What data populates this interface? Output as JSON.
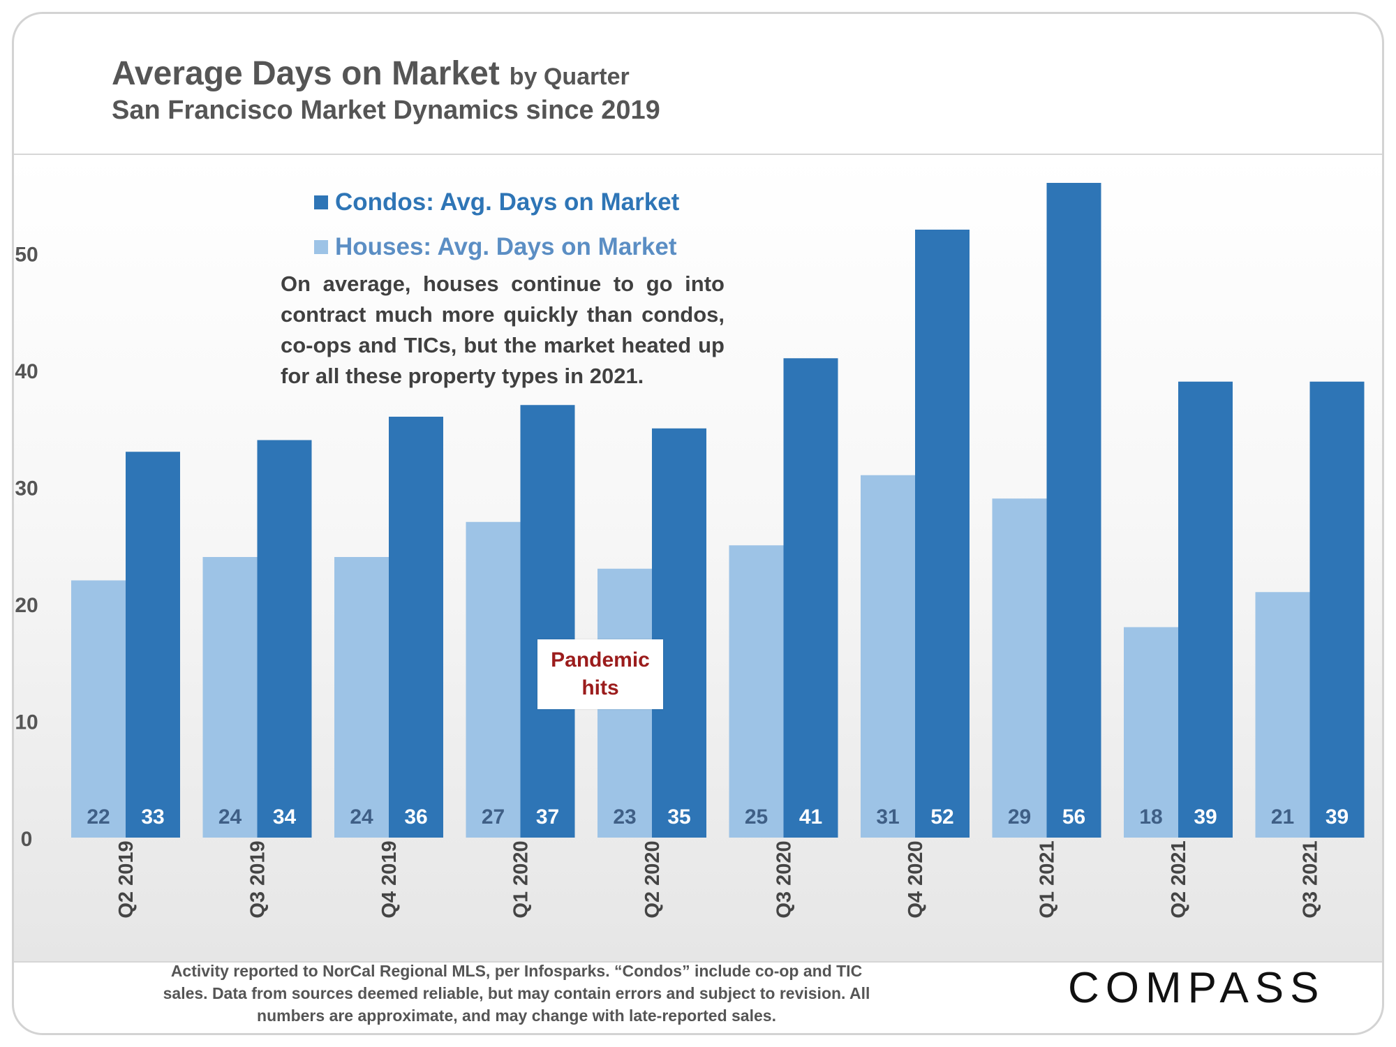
{
  "header": {
    "title": "Average Days on Market",
    "title_suffix": "by Quarter",
    "subtitle": "San Francisco Market Dynamics since 2019"
  },
  "chart_data": {
    "type": "bar",
    "categories": [
      "Q2 2019",
      "Q3 2019",
      "Q4 2019",
      "Q1 2020",
      "Q2 2020",
      "Q3 2020",
      "Q4 2020",
      "Q1 2021",
      "Q2 2021",
      "Q3 2021"
    ],
    "series": [
      {
        "name": "Houses: Avg. Days on Market",
        "values": [
          22,
          24,
          24,
          27,
          23,
          25,
          31,
          29,
          18,
          21
        ],
        "color": "#9dc3e6"
      },
      {
        "name": "Condos: Avg. Days on Market",
        "values": [
          33,
          34,
          36,
          37,
          35,
          41,
          52,
          56,
          39,
          39
        ],
        "color": "#2e75b6"
      }
    ],
    "ylim": [
      0,
      58
    ],
    "yticks": [
      0,
      10,
      20,
      30,
      40,
      50
    ],
    "legend_order": [
      "Condos: Avg. Days on Market",
      "Houses: Avg. Days on Market"
    ],
    "legend_placement": "top-left",
    "data_labels": "inside-base",
    "grid": false
  },
  "annotation": {
    "text": "On average, houses continue to go into contract much more quickly than condos, co-ops and TICs, but the market heated up for all these property types in 2021."
  },
  "callout": {
    "text": "Pandemic hits",
    "color": "#9b1c1c"
  },
  "footnote": {
    "text": "Activity reported to NorCal Regional MLS, per Infosparks. “Condos” include co-op and TIC sales. Data from sources deemed reliable, but may contain errors and subject to revision. All numbers are approximate, and may change with late-reported sales."
  },
  "brand": {
    "logo_text": "COMPASS"
  }
}
